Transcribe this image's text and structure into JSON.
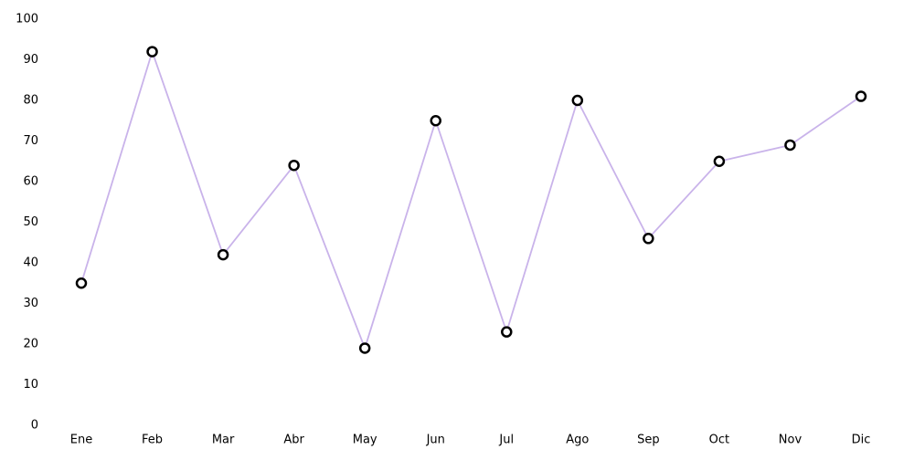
{
  "chart_data": {
    "type": "line",
    "title": "",
    "xlabel": "",
    "ylabel": "",
    "categories": [
      "Ene",
      "Feb",
      "Mar",
      "Abr",
      "May",
      "Jun",
      "Jul",
      "Ago",
      "Sep",
      "Oct",
      "Nov",
      "Dic"
    ],
    "series": [
      {
        "values": [
          35,
          92,
          42,
          64,
          19,
          75,
          23,
          80,
          46,
          65,
          69,
          81
        ],
        "line_color": "#c9b3ea",
        "marker_edge_color": "#000000",
        "marker_fill_color": "#ffffff"
      }
    ],
    "ylim": [
      0,
      100
    ],
    "yticks": [
      0,
      10,
      20,
      30,
      40,
      50,
      60,
      70,
      80,
      90,
      100
    ],
    "grid": false,
    "legend": "none"
  }
}
